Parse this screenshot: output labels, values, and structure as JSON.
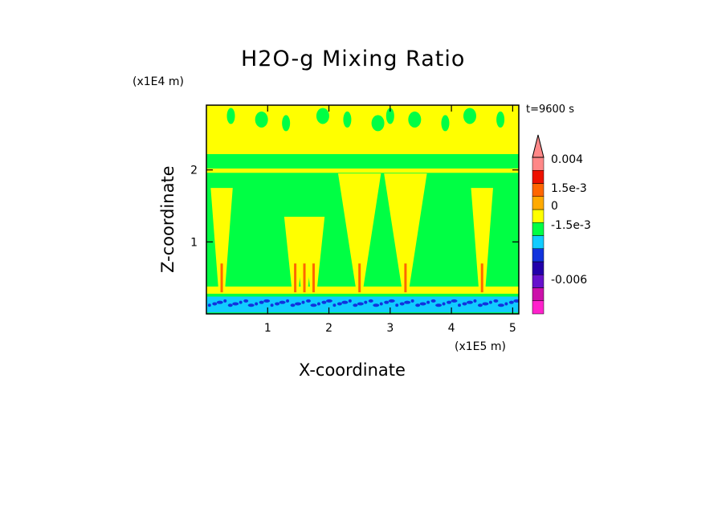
{
  "chart_data": {
    "type": "heatmap",
    "title": "H2O-g Mixing Ratio",
    "xlabel": "X-coordinate",
    "ylabel": "Z-coordinate",
    "x_unit": "(x1E5 m)",
    "z_unit": "(x1E4 m)",
    "time_label": "t=9600 s",
    "xlim": [
      0,
      5.1
    ],
    "ylim": [
      0,
      2.9
    ],
    "x_ticks": [
      1,
      2,
      3,
      4,
      5
    ],
    "y_ticks": [
      1,
      2
    ],
    "colorbar": {
      "colors": [
        "#ff22cc",
        "#cc11aa",
        "#6611cc",
        "#2200aa",
        "#1133dd",
        "#11ccff",
        "#00ff44",
        "#ffff00",
        "#ffaa00",
        "#ff6600",
        "#ee1100",
        "#ff8888"
      ],
      "labels": [
        {
          "text": "0.004",
          "level": 0.004
        },
        {
          "text": "1.5e-3",
          "level": 0.0015
        },
        {
          "text": "0",
          "level": 0
        },
        {
          "text": "-1.5e-3",
          "level": -0.0015
        },
        {
          "text": "-0.006",
          "level": -0.006
        }
      ]
    },
    "colors": {
      "background_field": "#00ff44",
      "positive_field": "#ffff00",
      "weak_negative": "#11ccff",
      "strong_negative": "#1133dd",
      "core_positive": "#ff6600"
    },
    "plumes_x": [
      0.25,
      1.45,
      1.6,
      1.75,
      2.5,
      3.25,
      4.5
    ]
  }
}
